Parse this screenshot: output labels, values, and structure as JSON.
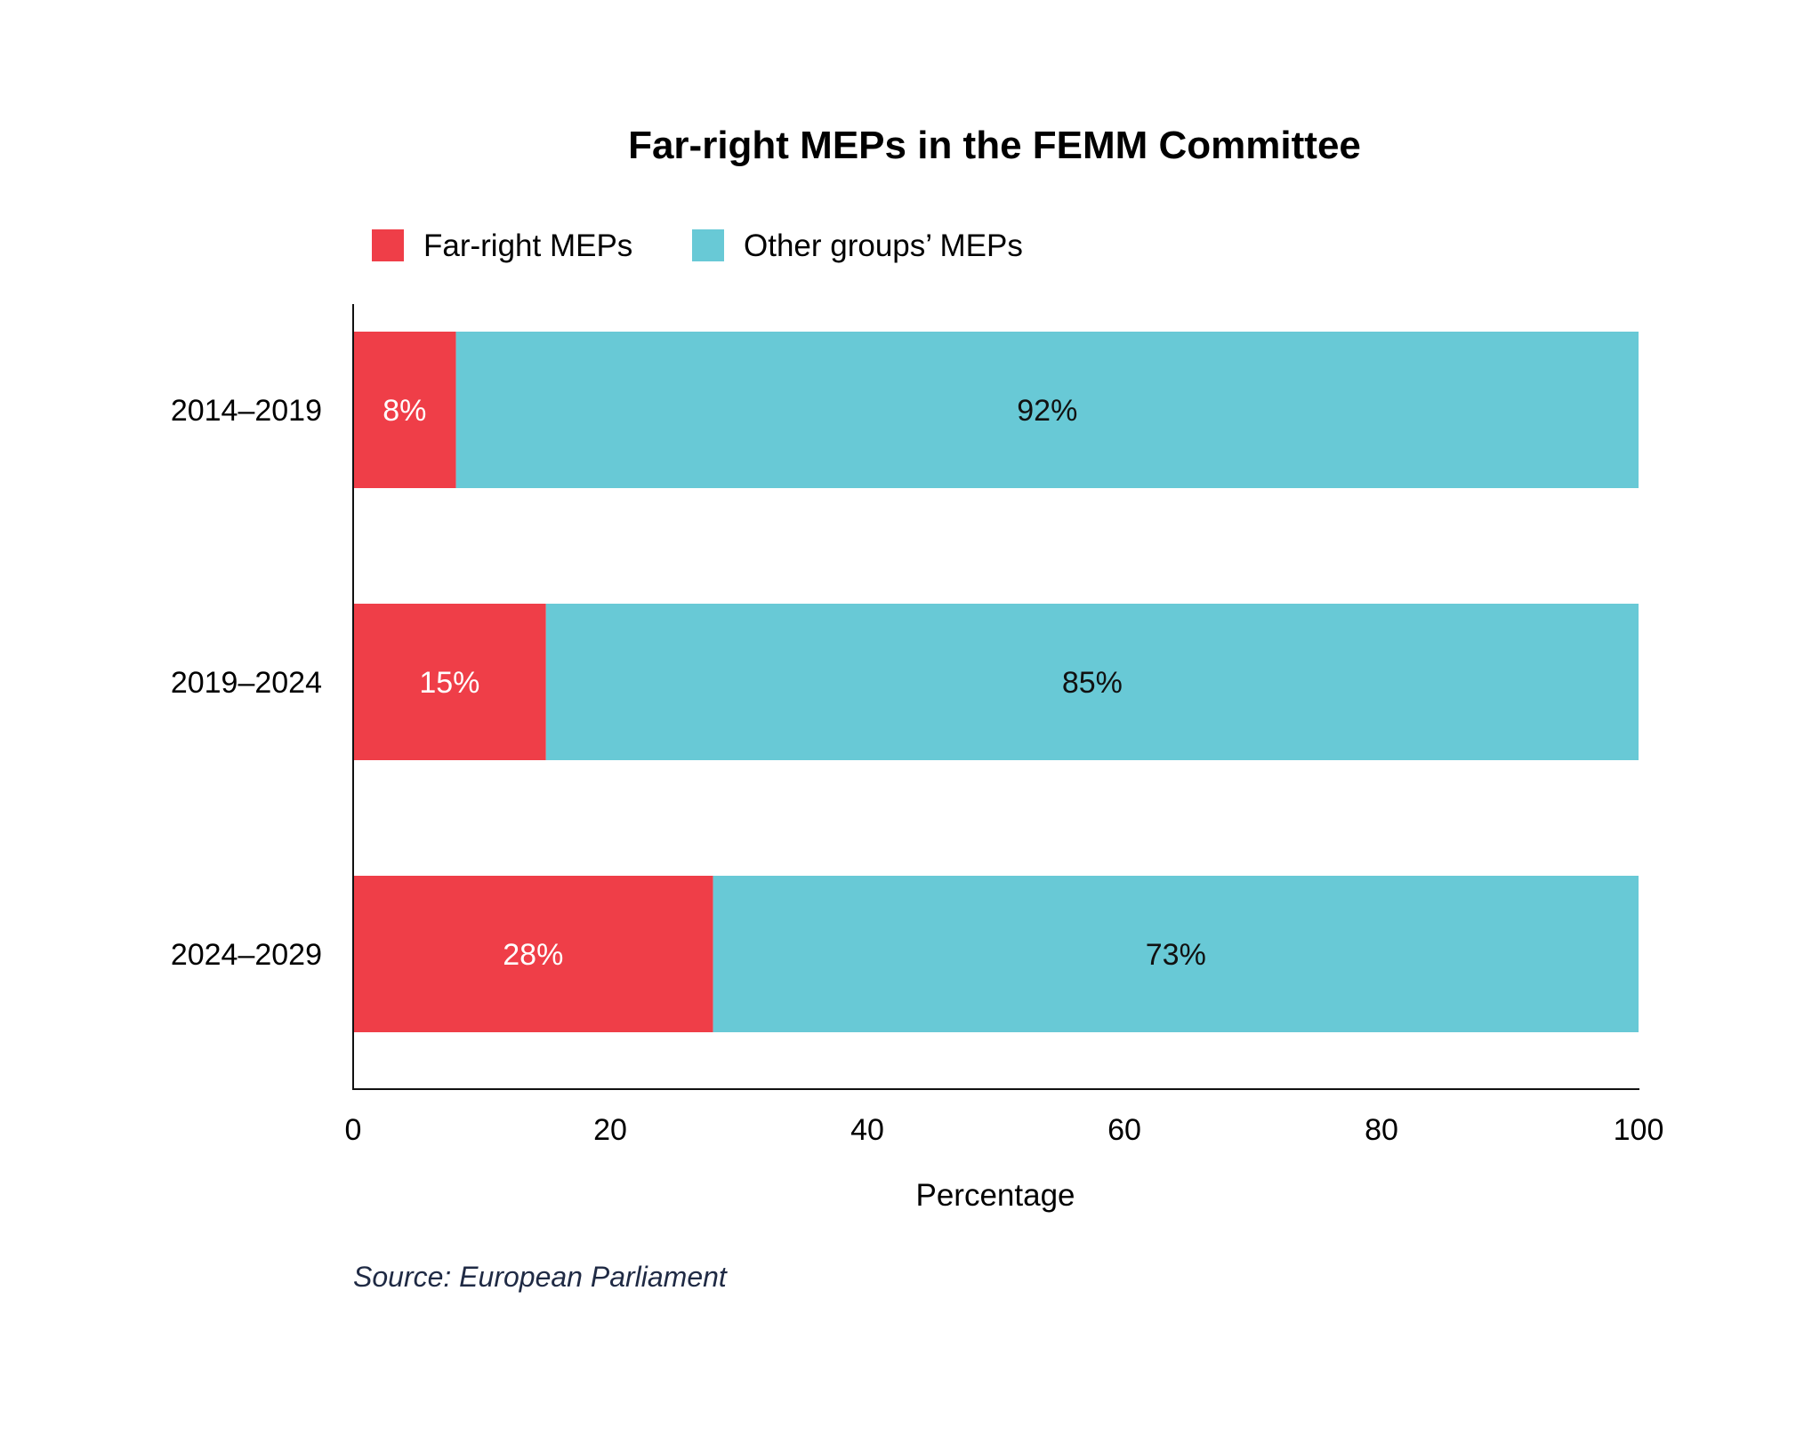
{
  "chart_data": {
    "type": "bar",
    "orientation": "horizontal",
    "stacked": true,
    "title": "Far-right MEPs in the FEMM Committee",
    "xlabel": "Percentage",
    "ylabel": "",
    "xlim": [
      0,
      100
    ],
    "xticks": [
      "0",
      "20",
      "40",
      "60",
      "80",
      "100"
    ],
    "categories": [
      "2014–2019",
      "2019–2024",
      "2024–2029"
    ],
    "series": [
      {
        "name": "Far-right MEPs",
        "values": [
          8,
          15,
          28
        ],
        "labels": [
          "8%",
          "15%",
          "28%"
        ],
        "color": "#EF3E48",
        "label_color": "#ffffff"
      },
      {
        "name": "Other groups’ MEPs",
        "values": [
          92,
          85,
          73
        ],
        "labels": [
          "92%",
          "85%",
          "73%"
        ],
        "color": "#68C9D6",
        "label_color": "#111111"
      }
    ],
    "legend_position": "top-left",
    "grid": false,
    "source": "Source: European Parliament"
  }
}
